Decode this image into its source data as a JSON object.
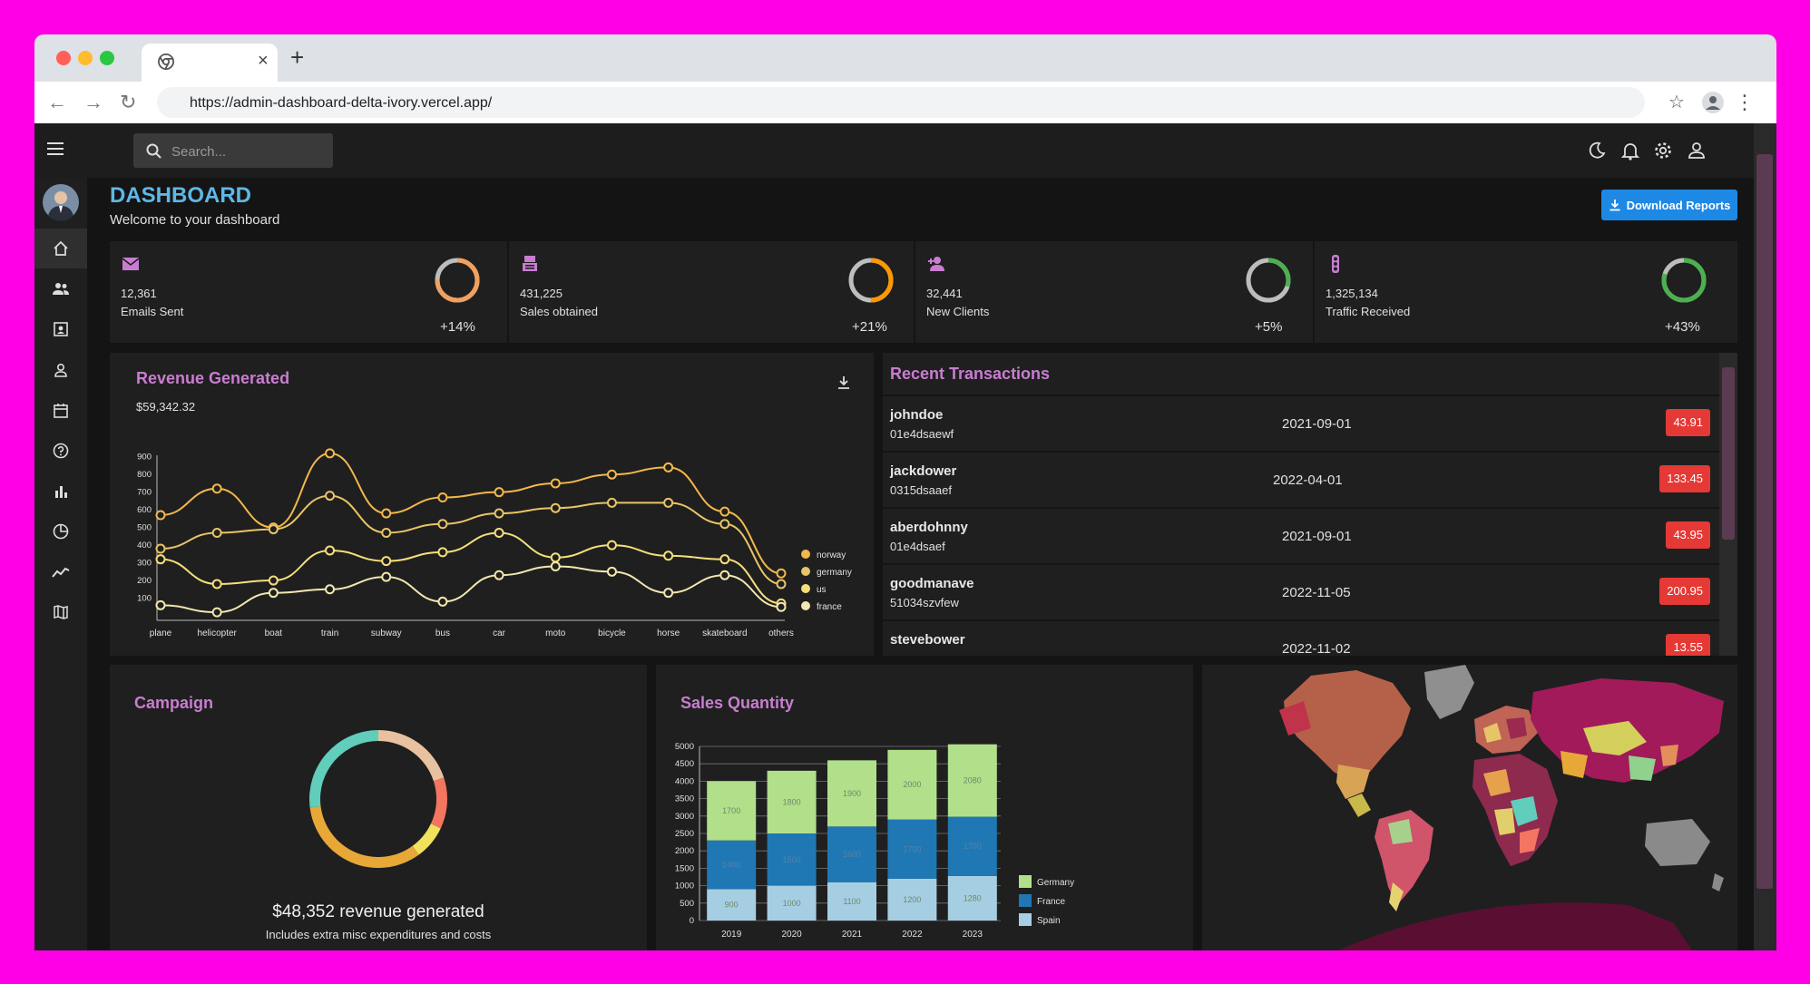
{
  "browser": {
    "url": "https://admin-dashboard-delta-ivory.vercel.app/"
  },
  "topbar": {
    "search_placeholder": "Search..."
  },
  "header": {
    "title": "DASHBOARD",
    "subtitle": "Welcome to your dashboard",
    "download_label": "Download Reports"
  },
  "stats": [
    {
      "value": "12,361",
      "label": "Emails Sent",
      "change": "+14%",
      "progress": 0.75,
      "ring_color": "#f0a060",
      "icon": "email-icon"
    },
    {
      "value": "431,225",
      "label": "Sales obtained",
      "change": "+21%",
      "progress": 0.5,
      "ring_color": "#ff9800",
      "icon": "point-of-sale-icon"
    },
    {
      "value": "32,441",
      "label": "New Clients",
      "change": "+5%",
      "progress": 0.3,
      "ring_color": "#4caf50",
      "icon": "person-add-icon"
    },
    {
      "value": "1,325,134",
      "label": "Traffic Received",
      "change": "+43%",
      "progress": 0.8,
      "ring_color": "#4caf50",
      "icon": "traffic-icon"
    }
  ],
  "revenue": {
    "title": "Revenue Generated",
    "amount": "$59,342.32"
  },
  "transactions": {
    "title": "Recent Transactions",
    "items": [
      {
        "user": "johndoe",
        "id": "01e4dsaewf",
        "date": "2021-09-01",
        "cost": "43.91"
      },
      {
        "user": "jackdower",
        "id": "0315dsaaef",
        "date": "2022-04-01",
        "cost": "133.45"
      },
      {
        "user": "aberdohnny",
        "id": "01e4dsaef",
        "date": "2021-09-01",
        "cost": "43.95"
      },
      {
        "user": "goodmanave",
        "id": "51034szvfew",
        "date": "2022-11-05",
        "cost": "200.95"
      },
      {
        "user": "stevebower",
        "id": "",
        "date": "2022-11-02",
        "cost": "13.55"
      }
    ]
  },
  "campaign": {
    "title": "Campaign",
    "revenue_text": "$48,352 revenue generated",
    "note": "Includes extra misc expenditures and costs"
  },
  "sales": {
    "title": "Sales Quantity"
  },
  "chart_data": [
    {
      "type": "line",
      "categories": [
        "plane",
        "helicopter",
        "boat",
        "train",
        "subway",
        "bus",
        "car",
        "moto",
        "bicycle",
        "horse",
        "skateboard",
        "others"
      ],
      "yticks": [
        100,
        200,
        300,
        400,
        500,
        600,
        700,
        800,
        900
      ],
      "ylim": [
        0,
        950
      ],
      "series": [
        {
          "name": "norway",
          "color": "#f2b84b",
          "values": [
            570,
            720,
            500,
            920,
            580,
            670,
            700,
            750,
            800,
            840,
            590,
            240
          ]
        },
        {
          "name": "germany",
          "color": "#e8c468",
          "values": [
            380,
            470,
            490,
            680,
            470,
            520,
            580,
            610,
            640,
            640,
            520,
            180
          ]
        },
        {
          "name": "us",
          "color": "#f5df7a",
          "values": [
            320,
            180,
            200,
            370,
            310,
            360,
            470,
            330,
            400,
            340,
            320,
            70
          ]
        },
        {
          "name": "france",
          "color": "#f3e7b0",
          "values": [
            60,
            20,
            130,
            150,
            220,
            80,
            230,
            280,
            250,
            130,
            230,
            50
          ]
        }
      ],
      "legend": "right"
    },
    {
      "type": "pie",
      "values": [
        20,
        12,
        8,
        33,
        27
      ],
      "colors": [
        "#e8c1a0",
        "#f47560",
        "#f1e15b",
        "#e8a838",
        "#61cdbb"
      ]
    },
    {
      "type": "bar",
      "stacked": true,
      "categories": [
        "2019",
        "2020",
        "2021",
        "2022",
        "2023"
      ],
      "yticks": [
        0,
        500,
        1000,
        1500,
        2000,
        2500,
        3000,
        3500,
        4000,
        4500,
        5000
      ],
      "ylim": [
        0,
        5000
      ],
      "series": [
        {
          "name": "Spain",
          "color": "#a6cee3",
          "values": [
            900,
            1000,
            1100,
            1200,
            1280
          ]
        },
        {
          "name": "France",
          "color": "#1f78b4",
          "values": [
            1400,
            1500,
            1600,
            1700,
            1700
          ]
        },
        {
          "name": "Germany",
          "color": "#b2df8a",
          "values": [
            1700,
            1800,
            1900,
            2000,
            2080
          ]
        }
      ],
      "legend": "right"
    }
  ]
}
